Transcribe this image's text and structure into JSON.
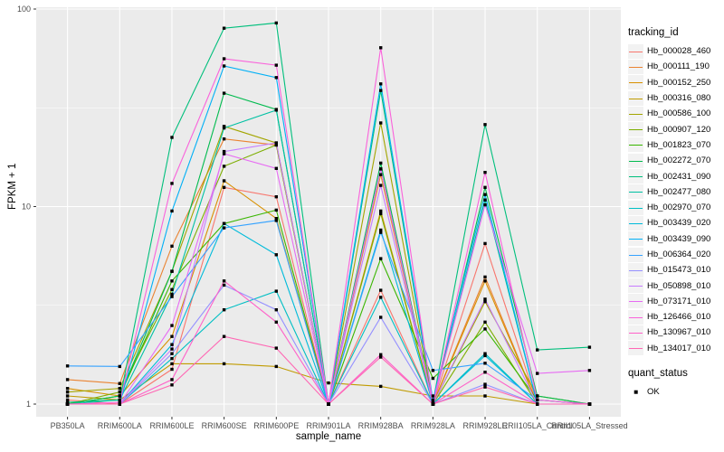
{
  "figure": {
    "x_axis_title": "sample_name",
    "y_axis_title": "FPKM + 1"
  },
  "chart_data": {
    "type": "line",
    "title": "",
    "xlabel": "sample_name",
    "ylabel": "FPKM + 1",
    "y_scale": "log10",
    "ylim": [
      1,
      100
    ],
    "y_ticks": [
      1,
      10,
      100
    ],
    "y_minor_ticks": [
      3.162,
      31.62
    ],
    "grid": "on",
    "legend_position": "right",
    "point_shape": "black-square",
    "categories": [
      "PB350LA",
      "RRIM600LA",
      "RRIM600LE",
      "RRIM600SE",
      "RRIM600PE",
      "RRIM901LA",
      "RRIM928BA",
      "RRIM928LA",
      "RRIM928LE",
      "RRII105LA_Control",
      "RRII105LA_Stressed"
    ],
    "series": [
      {
        "name": "Hb_000028_460",
        "color": "#F8766D",
        "values": [
          1.05,
          1.0,
          1.5,
          12.5,
          11.2,
          1.0,
          3.77,
          1.0,
          6.5,
          1.0,
          1.0
        ]
      },
      {
        "name": "Hb_000111_190",
        "color": "#EA8331",
        "values": [
          1.33,
          1.27,
          6.3,
          22.0,
          20.5,
          1.0,
          14.5,
          1.0,
          4.4,
          1.0,
          1.0
        ]
      },
      {
        "name": "Hb_000152_250",
        "color": "#D89000",
        "values": [
          1.2,
          1.1,
          2.2,
          13.5,
          8.7,
          1.0,
          9.5,
          1.0,
          4.2,
          1.0,
          1.0
        ]
      },
      {
        "name": "Hb_000316_080",
        "color": "#C09B00",
        "values": [
          1.1,
          1.05,
          1.6,
          1.6,
          1.55,
          1.28,
          1.23,
          1.1,
          1.1,
          1.0,
          1.0
        ]
      },
      {
        "name": "Hb_000586_100",
        "color": "#A3A500",
        "values": [
          1.15,
          1.2,
          4.7,
          25.5,
          21.0,
          1.0,
          26.5,
          1.0,
          3.3,
          1.1,
          1.0
        ]
      },
      {
        "name": "Hb_000907_120",
        "color": "#7CAE00",
        "values": [
          1.0,
          1.15,
          3.8,
          16.0,
          20.5,
          1.0,
          9.2,
          1.0,
          2.6,
          1.0,
          1.0
        ]
      },
      {
        "name": "Hb_001823_070",
        "color": "#39B600",
        "values": [
          1.0,
          1.1,
          4.2,
          8.2,
          9.6,
          1.0,
          5.45,
          1.35,
          2.4,
          1.05,
          1.0
        ]
      },
      {
        "name": "Hb_002272_070",
        "color": "#00BB4E",
        "values": [
          1.0,
          1.1,
          4.7,
          37.5,
          31.0,
          1.0,
          16.6,
          1.0,
          12.5,
          1.1,
          1.0
        ]
      },
      {
        "name": "Hb_002431_090",
        "color": "#00BF7C",
        "values": [
          1.02,
          1.05,
          22.4,
          80.0,
          85.0,
          1.0,
          38.7,
          1.02,
          26.0,
          1.88,
          1.94
        ]
      },
      {
        "name": "Hb_002477_080",
        "color": "#00C1A3",
        "values": [
          1.0,
          1.05,
          3.6,
          25.0,
          30.8,
          1.0,
          15.5,
          1.0,
          10.8,
          1.0,
          1.0
        ]
      },
      {
        "name": "Hb_002970_070",
        "color": "#00BFC4",
        "values": [
          1.0,
          1.0,
          1.7,
          3.0,
          3.73,
          1.0,
          3.47,
          1.0,
          1.8,
          1.0,
          1.0
        ]
      },
      {
        "name": "Hb_003439_020",
        "color": "#00BBDA",
        "values": [
          1.0,
          1.0,
          2.0,
          8.2,
          5.7,
          1.0,
          7.6,
          1.0,
          1.76,
          1.0,
          1.0
        ]
      },
      {
        "name": "Hb_003439_090",
        "color": "#00B0F6",
        "values": [
          1.0,
          1.0,
          9.5,
          51.5,
          45.0,
          1.0,
          41.8,
          1.05,
          11.5,
          1.0,
          1.0
        ]
      },
      {
        "name": "Hb_006364_020",
        "color": "#35A2FF",
        "values": [
          1.56,
          1.55,
          3.5,
          7.8,
          8.5,
          1.0,
          7.4,
          1.48,
          1.61,
          1.05,
          1.0
        ]
      },
      {
        "name": "Hb_015473_010",
        "color": "#9590FF",
        "values": [
          1.0,
          1.0,
          1.8,
          4.0,
          3.0,
          1.0,
          2.75,
          1.0,
          1.26,
          1.0,
          1.0
        ]
      },
      {
        "name": "Hb_050898_010",
        "color": "#C77CFF",
        "values": [
          1.0,
          1.0,
          1.9,
          19.0,
          21.0,
          1.0,
          12.8,
          1.0,
          3.4,
          1.0,
          1.0
        ]
      },
      {
        "name": "Hb_073171_010",
        "color": "#E76BF3",
        "values": [
          1.0,
          1.0,
          2.5,
          18.5,
          15.6,
          1.0,
          15.5,
          1.0,
          10.2,
          1.43,
          1.48
        ]
      },
      {
        "name": "Hb_126466_010",
        "color": "#FA62DB",
        "values": [
          1.0,
          1.02,
          13.1,
          56.0,
          52.0,
          1.0,
          63.7,
          1.0,
          14.9,
          1.05,
          1.0
        ]
      },
      {
        "name": "Hb_130967_010",
        "color": "#FF61C9",
        "values": [
          1.0,
          1.0,
          1.33,
          4.2,
          2.6,
          1.0,
          1.78,
          1.0,
          1.45,
          1.0,
          1.0
        ]
      },
      {
        "name": "Hb_134017_010",
        "color": "#FF67B4",
        "values": [
          1.0,
          1.0,
          1.25,
          2.2,
          1.92,
          1.0,
          1.73,
          1.0,
          1.22,
          1.0,
          1.0
        ]
      }
    ]
  },
  "legend": {
    "tracking_title": "tracking_id",
    "quant_title": "quant_status",
    "quant_items": [
      {
        "label": "OK",
        "shape": "black-square"
      }
    ]
  },
  "colors": {
    "panel_bg": "#EBEBEB",
    "grid_major": "#FFFFFF",
    "grid_minor": "#FFFFFF",
    "tick_mark": "#333333",
    "tick_text": "#4D4D4D",
    "axis_title": "#000000",
    "point": "#000000",
    "legend_key_bg": "#F2F2F2"
  }
}
